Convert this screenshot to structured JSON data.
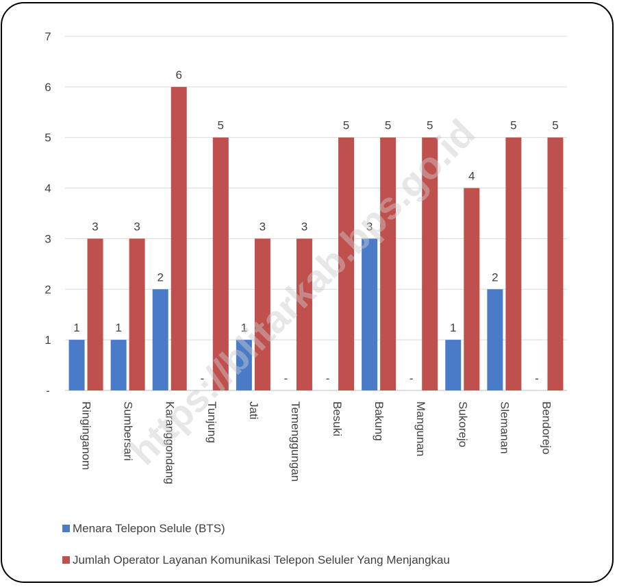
{
  "chart_data": {
    "type": "bar",
    "categories": [
      "Ringinganom",
      "Sumbersari",
      "Karanggondang",
      "Tunjung",
      "Jati",
      "Temenggungan",
      "Besuki",
      "Bakung",
      "Mangunan",
      "Sukorejo",
      "Slemanan",
      "Bendorejo"
    ],
    "series": [
      {
        "name": "Menara Telepon Selule (BTS)",
        "color": "#4a7bc8",
        "values": [
          1,
          1,
          2,
          0,
          1,
          0,
          0,
          3,
          0,
          1,
          2,
          0
        ],
        "labels": [
          "1",
          "1",
          "2",
          "-",
          "1",
          "-",
          "-",
          "3",
          "-",
          "1",
          "2",
          "-"
        ]
      },
      {
        "name": "Jumlah Operator Layanan Komunikasi Telepon Seluler Yang Menjangkau",
        "color": "#c0504d",
        "values": [
          3,
          3,
          6,
          5,
          3,
          3,
          5,
          5,
          5,
          4,
          5,
          5
        ],
        "labels": [
          "3",
          "3",
          "6",
          "5",
          "3",
          "3",
          "5",
          "5",
          "5",
          "4",
          "5",
          "5"
        ]
      }
    ],
    "y_ticks": [
      {
        "value": 0,
        "label": "-"
      },
      {
        "value": 1,
        "label": "1"
      },
      {
        "value": 2,
        "label": "2"
      },
      {
        "value": 3,
        "label": "3"
      },
      {
        "value": 4,
        "label": "4"
      },
      {
        "value": 5,
        "label": "5"
      },
      {
        "value": 6,
        "label": "6"
      },
      {
        "value": 7,
        "label": "7"
      }
    ],
    "ylim": [
      0,
      7
    ],
    "grid": true,
    "legend": "bottom-left"
  },
  "watermark": "https://blitarkab.bps.go.id"
}
